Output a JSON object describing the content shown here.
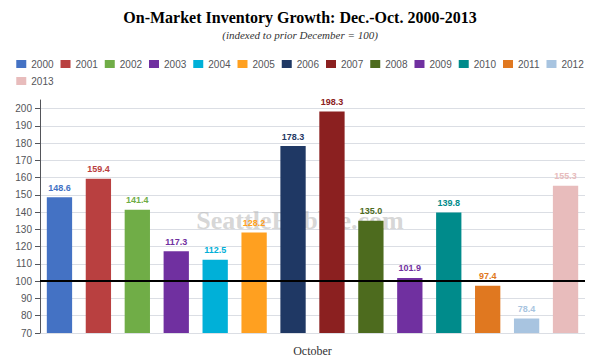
{
  "chart_data": {
    "type": "bar",
    "title": "On-Market Inventory Growth: Dec.-Oct. 2000-2013",
    "subtitle": "(indexed to prior December = 100)",
    "xlabel": "October",
    "annotation": "SeattleBubble.com",
    "categories": [
      "2000",
      "2001",
      "2002",
      "2003",
      "2004",
      "2005",
      "2006",
      "2007",
      "2008",
      "2009",
      "2010",
      "2011",
      "2012",
      "2013"
    ],
    "values": [
      148.6,
      159.4,
      141.4,
      117.3,
      112.5,
      128.2,
      178.3,
      198.3,
      135.0,
      101.9,
      139.8,
      97.4,
      78.4,
      155.3
    ],
    "value_labels": [
      "148.6",
      "159.4",
      "141.4",
      "117.3",
      "112.5",
      "128.2",
      "178.3",
      "198.3",
      "135.0",
      "101.9",
      "139.8",
      "97.4",
      "78.4",
      "155.3"
    ],
    "colors": [
      "#4472C4",
      "#B94040",
      "#70AD47",
      "#7030A0",
      "#00B0D8",
      "#FFA020",
      "#1F3864",
      "#8B2020",
      "#4D6B1E",
      "#7030A0",
      "#008B8B",
      "#E07820",
      "#A8C4E0",
      "#E8BCBC"
    ],
    "hline": 100,
    "ylim": [
      70,
      205
    ],
    "yticks": [
      70,
      80,
      90,
      100,
      110,
      120,
      130,
      140,
      150,
      160,
      170,
      180,
      190,
      200
    ],
    "grid": true,
    "legend": "top",
    "data_labels": true,
    "tick_labels": "y"
  }
}
